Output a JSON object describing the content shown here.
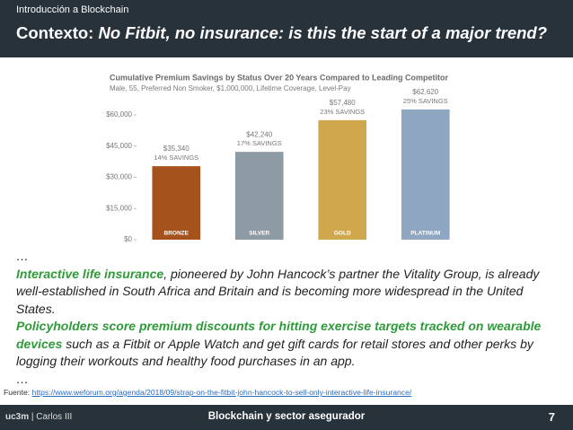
{
  "header": {
    "section": "Introducción a Blockchain",
    "title_prefix": "Contexto:",
    "title": "No Fitbit, no insurance: is this the start of a major trend?"
  },
  "chart_data": {
    "type": "bar",
    "title": "Cumulative Premium Savings by Status Over 20 Years Compared to Leading Competitor",
    "subtitle": "Male, 55, Preferred Non Smoker, $1,000,000, Lifetime Coverage, Level-Pay",
    "categories": [
      "BRONZE",
      "SILVER",
      "GOLD",
      "PLATINUM"
    ],
    "values": [
      35340,
      42240,
      57480,
      62620
    ],
    "value_labels": [
      "$35,340",
      "$42,240",
      "$57,480",
      "$62,620"
    ],
    "savings_labels": [
      "14% SAVINGS",
      "17% SAVINGS",
      "23% SAVINGS",
      "25% SAVINGS"
    ],
    "colors": [
      "#a5521c",
      "#8e9aa4",
      "#cfa84e",
      "#8ea6bf"
    ],
    "ylim": [
      0,
      65000
    ],
    "yticks": [
      {
        "value": 0,
        "label": "$0"
      },
      {
        "value": 15000,
        "label": "$15,000"
      },
      {
        "value": 30000,
        "label": "$30,000"
      },
      {
        "value": 45000,
        "label": "$45,000"
      },
      {
        "value": 60000,
        "label": "$60,000"
      }
    ]
  },
  "body": {
    "ellipsis_start": "…",
    "p1_highlight": "Interactive life insurance",
    "p1_rest": ", pioneered by John Hancock’s partner the Vitality Group, is already well-established in South Africa and Britain and is becoming more widespread in the United States.",
    "p2_highlight": "Policyholders score premium discounts for hitting exercise targets tracked on wearable devices",
    "p2_rest": " such as a Fitbit or Apple Watch and get gift cards for retail stores and other perks by logging their workouts and healthy food purchases in an app.",
    "ellipsis_end": "…"
  },
  "source": {
    "label": "Fuente:",
    "url": "https://www.weforum.org/agenda/2018/09/strap-on-the-fitbit-john-hancock-to-sell-only-interactive-life-insurance/"
  },
  "footer": {
    "logo_left": "uc3m",
    "logo_right": "Carlos III",
    "title": "Blockchain y sector asegurador",
    "page": "7"
  }
}
